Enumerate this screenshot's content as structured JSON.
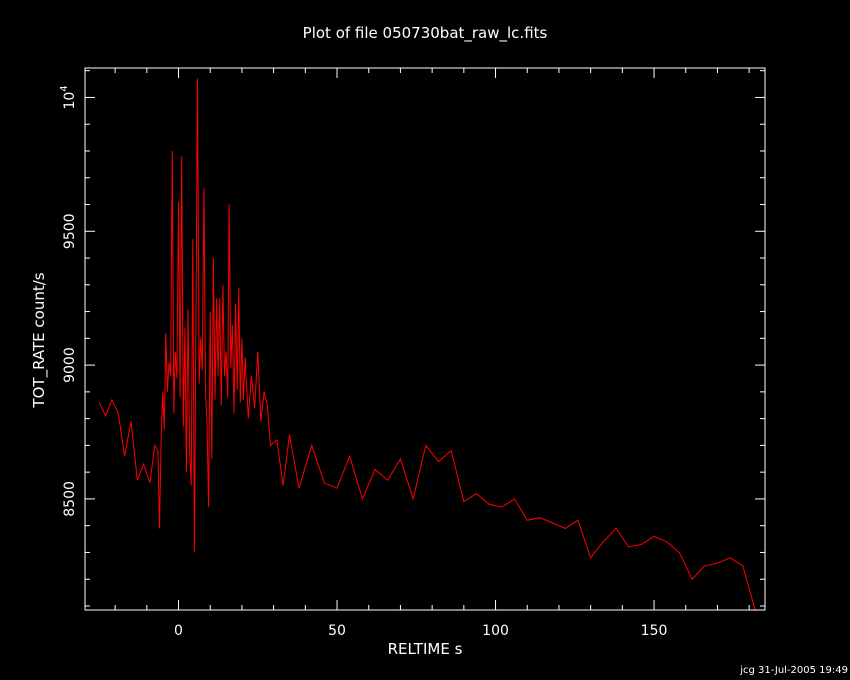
{
  "footer": "jcg 31-Jul-2005 19:49",
  "chart_data": {
    "type": "line",
    "title": "Plot of file 050730bat_raw_lc.fits",
    "xlabel": "RELTIME  s",
    "ylabel": "TOT_RATE  count/s",
    "xlim": [
      -29.5,
      185
    ],
    "ylim": [
      8085,
      10110
    ],
    "x_ticks": [
      "0",
      "50",
      "100",
      "150"
    ],
    "x_tick_values": [
      0,
      50,
      100,
      150
    ],
    "y_ticks": [
      "8500",
      "9000",
      "9500",
      "10"
    ],
    "y_tick_values": [
      8500,
      9000,
      9500,
      10000
    ],
    "y_tick_exponent": "4",
    "grid": false,
    "series": [
      {
        "color": "#ff0000",
        "x": [
          -25,
          -23,
          -21,
          -19,
          -17,
          -15,
          -13,
          -11,
          -9,
          -7.5,
          -6.5,
          -6,
          -5.5,
          -5,
          -4.5,
          -4,
          -3.5,
          -3,
          -2.5,
          -2,
          -1.5,
          -1,
          -0.5,
          0,
          0.5,
          1,
          1.5,
          2,
          2.5,
          3,
          3.5,
          4,
          4.5,
          5,
          5.5,
          6,
          6.5,
          7,
          7.5,
          8,
          8.5,
          9,
          9.5,
          10,
          10.5,
          11,
          11.5,
          12,
          12.5,
          13,
          13.5,
          14,
          14.5,
          15,
          15.5,
          16,
          16.5,
          17,
          17.5,
          18,
          18.5,
          19,
          19.5,
          20,
          20.5,
          21,
          22,
          23,
          24,
          25,
          26,
          27,
          28,
          29,
          31,
          33,
          35,
          38,
          42,
          46,
          50,
          54,
          58,
          62,
          66,
          70,
          74,
          78,
          82,
          86,
          90,
          94,
          98,
          102,
          106,
          110,
          114,
          118,
          122,
          126,
          130,
          134,
          138,
          142,
          146,
          150,
          154,
          158,
          162,
          166,
          170,
          174,
          178,
          182
        ],
        "y": [
          8860,
          8810,
          8870,
          8820,
          8660,
          8790,
          8570,
          8630,
          8560,
          8700,
          8680,
          8390,
          8720,
          8900,
          8760,
          9120,
          8900,
          9010,
          8960,
          9800,
          8820,
          9050,
          8950,
          9610,
          8880,
          9780,
          8770,
          9140,
          8600,
          9210,
          8680,
          8550,
          9470,
          8300,
          9200,
          10070,
          8930,
          9100,
          8980,
          9660,
          8910,
          8770,
          8470,
          9200,
          8650,
          9400,
          8870,
          9250,
          8960,
          9250,
          8850,
          9300,
          8960,
          9050,
          8880,
          9600,
          8990,
          9150,
          8820,
          9230,
          8910,
          9290,
          8860,
          9100,
          8870,
          9030,
          8800,
          8960,
          8840,
          9050,
          8790,
          8900,
          8850,
          8700,
          8720,
          8550,
          8740,
          8540,
          8700,
          8560,
          8540,
          8660,
          8500,
          8610,
          8570,
          8650,
          8500,
          8700,
          8640,
          8680,
          8490,
          8520,
          8480,
          8470,
          8500,
          8420,
          8430,
          8410,
          8390,
          8420,
          8280,
          8340,
          8390,
          8320,
          8330,
          8360,
          8340,
          8300,
          8200,
          8250,
          8260,
          8280,
          8250,
          8080
        ]
      }
    ]
  }
}
